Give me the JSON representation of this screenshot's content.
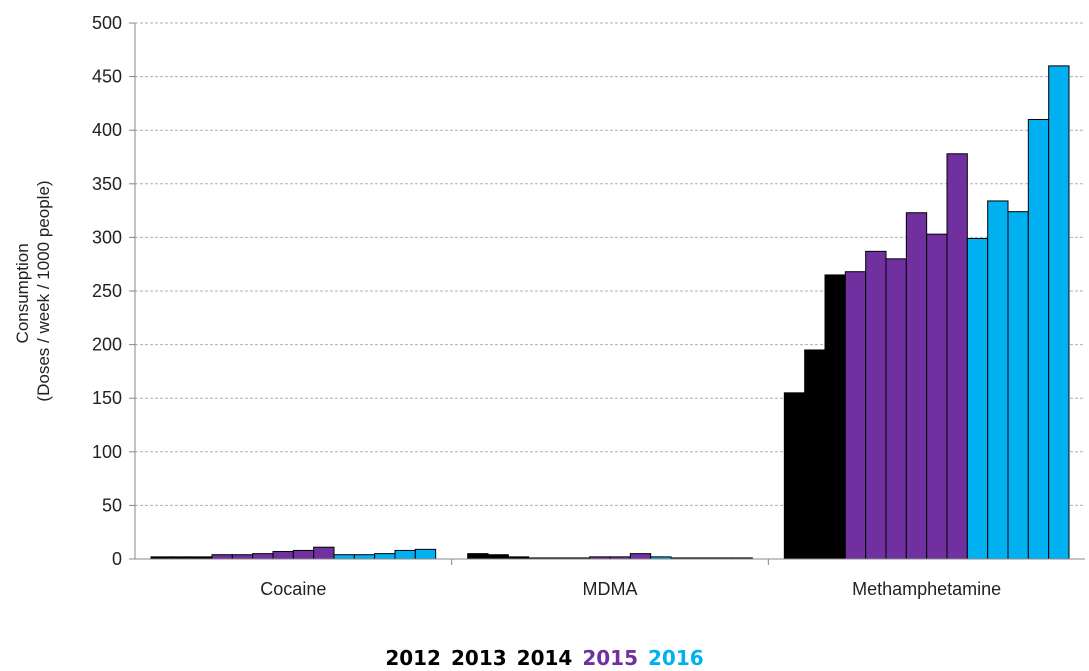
{
  "chart_data": {
    "type": "bar",
    "ylabel_lines": [
      "Consumption",
      "(Doses / week  / 1000 people)"
    ],
    "ylim": [
      0,
      500
    ],
    "yticks": [
      0,
      50,
      100,
      150,
      200,
      250,
      300,
      350,
      400,
      450,
      500
    ],
    "grid": true,
    "legend_position": "bottom-center",
    "legend": [
      {
        "label": "2012",
        "color": "#000000"
      },
      {
        "label": "2013",
        "color": "#000000"
      },
      {
        "label": "2014",
        "color": "#000000"
      },
      {
        "label": "2015",
        "color": "#7030a0"
      },
      {
        "label": "2016",
        "color": "#00b0f0"
      }
    ],
    "categories": [
      {
        "label": "Cocaine",
        "values": [
          2,
          2,
          2,
          4,
          4,
          5,
          7,
          8,
          11,
          4,
          4,
          5,
          8,
          9
        ],
        "years": [
          "2012",
          "2013",
          "2014",
          "2015",
          "2015",
          "2015",
          "2015",
          "2015",
          "2015",
          "2016",
          "2016",
          "2016",
          "2016",
          "2016"
        ]
      },
      {
        "label": "MDMA",
        "values": [
          5,
          4,
          2,
          1,
          1,
          1,
          2,
          2,
          5,
          2,
          1,
          1,
          1,
          1
        ],
        "years": [
          "2012",
          "2013",
          "2014",
          "2015",
          "2015",
          "2015",
          "2015",
          "2015",
          "2015",
          "2016",
          "2016",
          "2016",
          "2016",
          "2016"
        ]
      },
      {
        "label": "Methamphetamine",
        "values": [
          155,
          195,
          265,
          268,
          287,
          280,
          323,
          303,
          378,
          299,
          334,
          324,
          410,
          460
        ],
        "years": [
          "2012",
          "2013",
          "2014",
          "2015",
          "2015",
          "2015",
          "2015",
          "2015",
          "2015",
          "2016",
          "2016",
          "2016",
          "2016",
          "2016"
        ]
      }
    ]
  }
}
